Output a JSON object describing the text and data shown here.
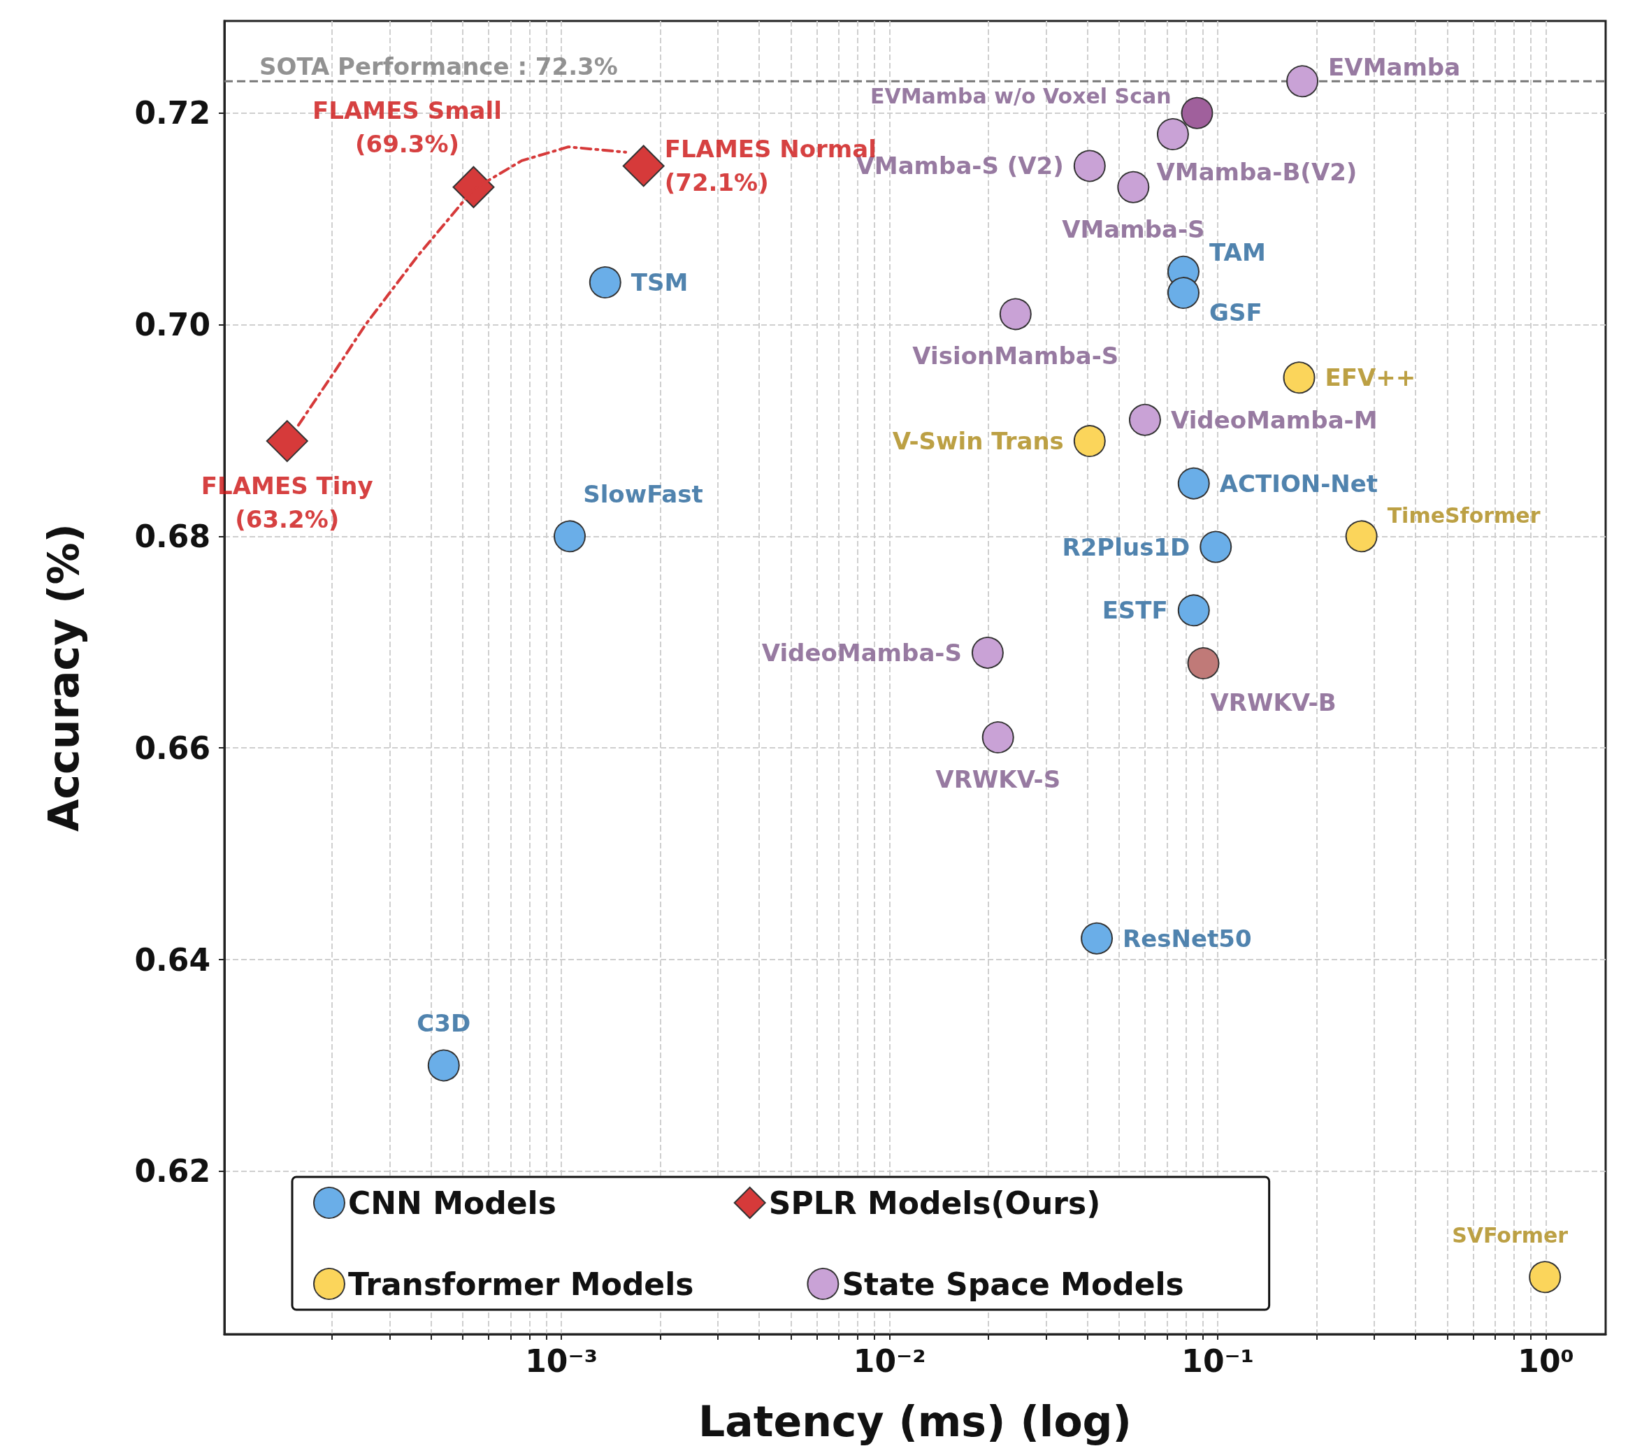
{
  "chart_data": {
    "type": "scatter",
    "xlabel": "Latency (ms) (log)",
    "ylabel": "Accuracy (%)",
    "log": "x",
    "grid": true,
    "legend": "bottom",
    "marker": "circle",
    "xlim": [
      9.4e-05,
      1.52
    ],
    "ylim": [
      0.6046,
      0.7287
    ],
    "xticks": [
      {
        "value": 0.0002,
        "label": null
      },
      {
        "value": 0.0003,
        "label": null
      },
      {
        "value": 0.0004,
        "label": null
      },
      {
        "value": 0.0005,
        "label": null
      },
      {
        "value": 0.0006,
        "label": null
      },
      {
        "value": 0.0007,
        "label": null
      },
      {
        "value": 0.0008,
        "label": null
      },
      {
        "value": 0.0009,
        "label": null
      },
      {
        "value": 0.001,
        "label": "10⁻³"
      },
      {
        "value": 0.002,
        "label": null
      },
      {
        "value": 0.003,
        "label": null
      },
      {
        "value": 0.004,
        "label": null
      },
      {
        "value": 0.005,
        "label": null
      },
      {
        "value": 0.006,
        "label": null
      },
      {
        "value": 0.007,
        "label": null
      },
      {
        "value": 0.008,
        "label": null
      },
      {
        "value": 0.009,
        "label": null
      },
      {
        "value": 0.01,
        "label": "10⁻²"
      },
      {
        "value": 0.02,
        "label": null
      },
      {
        "value": 0.03,
        "label": null
      },
      {
        "value": 0.04,
        "label": null
      },
      {
        "value": 0.05,
        "label": null
      },
      {
        "value": 0.06,
        "label": null
      },
      {
        "value": 0.07,
        "label": null
      },
      {
        "value": 0.08,
        "label": null
      },
      {
        "value": 0.09,
        "label": null
      },
      {
        "value": 0.1,
        "label": "10⁻¹"
      },
      {
        "value": 0.2,
        "label": null
      },
      {
        "value": 0.3,
        "label": null
      },
      {
        "value": 0.4,
        "label": null
      },
      {
        "value": 0.5,
        "label": null
      },
      {
        "value": 0.6,
        "label": null
      },
      {
        "value": 0.7,
        "label": null
      },
      {
        "value": 0.8,
        "label": null
      },
      {
        "value": 0.9,
        "label": null
      },
      {
        "value": 1,
        "label": "10⁰"
      }
    ],
    "yticks": [
      {
        "value": 0.62,
        "label": "0.62"
      },
      {
        "value": 0.64,
        "label": "0.64"
      },
      {
        "value": 0.66,
        "label": "0.66"
      },
      {
        "value": 0.68,
        "label": "0.68"
      },
      {
        "value": 0.7,
        "label": "0.70"
      },
      {
        "value": 0.72,
        "label": "0.72"
      }
    ],
    "annotations": [
      {
        "text": "FLAMES Tiny\n(63.2%)",
        "x": 0.000146,
        "y": 0.689
      },
      {
        "text": "FLAMES Small\n(69.3%)",
        "x": 0.00054,
        "y": 0.713
      },
      {
        "text": "FLAMES Normal\n(72.1%)",
        "x": 0.00178,
        "y": 0.715
      }
    ],
    "ref_lines": [
      {
        "axis": "y",
        "value": 0.723,
        "label": "SOTA Performance : 72.3%",
        "color": "#777777",
        "line_style": "dashed"
      }
    ],
    "series": [
      {
        "name": "CNN Models",
        "color": "#6aaee8",
        "x": [
          0.00136,
          0.00106,
          0.000438,
          0.0786,
          0.0786,
          0.0845,
          0.0986,
          0.0845,
          0.0428
        ],
        "values": [
          0.704,
          0.68,
          0.63,
          0.705,
          0.703,
          0.685,
          0.679,
          0.673,
          0.642
        ],
        "value_labels": [
          "TSM",
          "SlowFast",
          "C3D",
          "TAM",
          "GSF",
          "ACTION-Net",
          "R2Plus1D",
          "ESTF",
          "ResNet50"
        ]
      },
      {
        "name": "Transformer Models",
        "color": "#fbd55b",
        "x": [
          0.177,
          0.0407,
          0.274,
          0.993
        ],
        "values": [
          0.695,
          0.689,
          0.68,
          0.61
        ],
        "value_labels": [
          "EFV++",
          "V-Swin Trans",
          "TimeSformer",
          "SVFormer"
        ]
      },
      {
        "name": "SPLR Models(Ours)",
        "color": "#d63a3a",
        "marker": "diamond",
        "x": [
          0.000146,
          0.00054,
          0.00178
        ],
        "values": [
          0.689,
          0.713,
          0.715
        ]
      },
      {
        "name": "State Space Models",
        "color": "#c9a2d6",
        "colors": [
          "#c9a2d6",
          "#a0609c",
          "#c9a2d6",
          "#c9a2d6",
          "#c9a2d6",
          "#c9a2d6",
          "#c9a2d6",
          "#c9a2d6",
          "#c07a78",
          "#c9a2d6"
        ],
        "x": [
          0.181,
          0.0865,
          0.073,
          0.0407,
          0.0553,
          0.0242,
          0.06,
          0.0199,
          0.0904,
          0.0214
        ],
        "values": [
          0.723,
          0.72,
          0.718,
          0.715,
          0.713,
          0.701,
          0.691,
          0.669,
          0.668,
          0.661
        ],
        "value_labels": [
          "EVMamba",
          "EVMamba w/o Voxel Scan",
          "VMamba-B(V2)",
          "VMamba-S (V2)",
          "VMamba-S",
          "VisionMamba-S",
          "VideoMamba-M",
          "VideoMamba-S",
          "VRWKV-B",
          "VRWKV-S"
        ]
      },
      {
        "type": "line",
        "color": "#d63a3a",
        "line_style": "dashed",
        "marker": "none",
        "x": [
          0.000158,
          0.000203,
          0.000253,
          0.000365,
          0.00054,
          0.000757,
          0.00105,
          0.00157
        ],
        "values": [
          0.6905,
          0.6955,
          0.7,
          0.7065,
          0.7128,
          0.7155,
          0.7168,
          0.7163
        ]
      }
    ]
  }
}
